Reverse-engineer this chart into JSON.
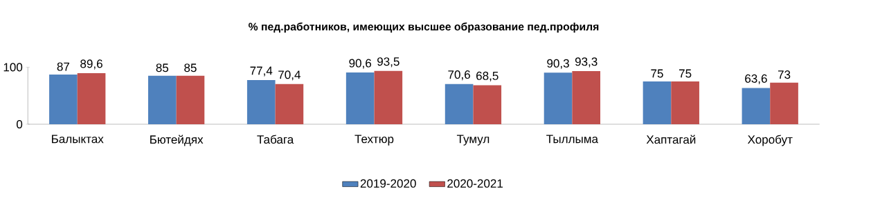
{
  "chart_data": {
    "type": "bar",
    "title": "% пед.работников, имеющих высшее образование пед.профиля",
    "categories": [
      "Балыктах",
      "Бютейдях",
      "Табага",
      "Техтюр",
      "Тумул",
      "Тыллыма",
      "Хаптагай",
      "Хоробут"
    ],
    "series": [
      {
        "name": "2019-2020",
        "color": "#4f81bd",
        "values": [
          87,
          85,
          77.4,
          90.6,
          70.6,
          90.3,
          75,
          63.6
        ],
        "value_labels": [
          "87",
          "85",
          "77,4",
          "90,6",
          "70,6",
          "90,3",
          "75",
          "63,6"
        ]
      },
      {
        "name": "2020-2021",
        "color": "#c0504d",
        "values": [
          89.6,
          85,
          70.4,
          93.5,
          68.5,
          93.3,
          75,
          73
        ],
        "value_labels": [
          "89,6",
          "85",
          "70,4",
          "93,5",
          "68,5",
          "93,3",
          "75",
          "73"
        ]
      }
    ],
    "ylim": [
      0,
      100
    ],
    "yticks": [
      0,
      100
    ],
    "legend": "bottom",
    "grid": false
  }
}
